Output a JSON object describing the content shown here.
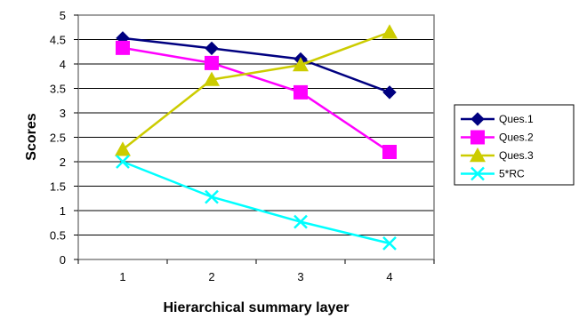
{
  "chart_data": {
    "type": "line",
    "title": "",
    "xlabel": "Hierarchical summary layer",
    "ylabel": "Scores",
    "categories": [
      "1",
      "2",
      "3",
      "4"
    ],
    "ylim": [
      0,
      5
    ],
    "yticks": [
      "0",
      "0.5",
      "1",
      "1.5",
      "2",
      "2.5",
      "3",
      "3.5",
      "4",
      "4.5",
      "5"
    ],
    "grid": "horizontal",
    "legend_position": "right",
    "series": [
      {
        "name": "Ques.1",
        "values": [
          4.53,
          4.32,
          4.1,
          3.42
        ],
        "color": "#000080",
        "marker": "diamond"
      },
      {
        "name": "Ques.2",
        "values": [
          4.33,
          4.02,
          3.42,
          2.2
        ],
        "color": "#FF00FF",
        "marker": "square"
      },
      {
        "name": "Ques.3",
        "values": [
          2.25,
          3.68,
          3.98,
          4.65
        ],
        "color": "#CCCC00",
        "marker": "triangle"
      },
      {
        "name": "5*RC",
        "values": [
          2.0,
          1.28,
          0.77,
          0.33
        ],
        "color": "#00FFFF",
        "marker": "x"
      }
    ]
  }
}
